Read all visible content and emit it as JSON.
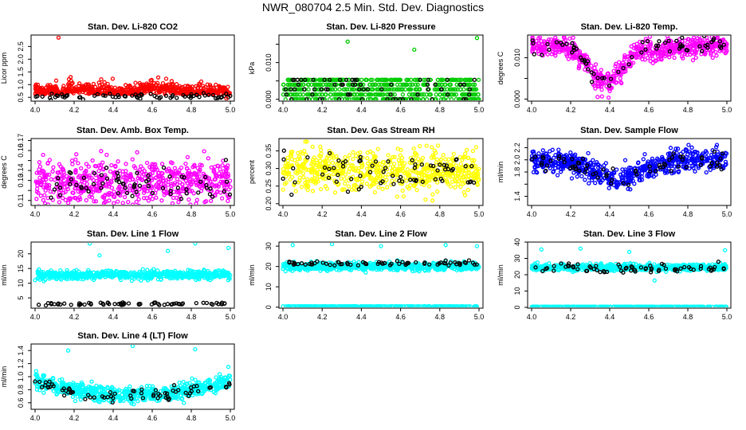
{
  "page_title": "NWR_080704  2.5 Min. Std. Dev. Diagnostics",
  "chart_data": [
    {
      "type": "scatter",
      "title": "Stan. Dev. Li-820 CO2",
      "xlabel": "",
      "ylabel": "Licor ppm",
      "xlim": [
        4.0,
        5.0
      ],
      "ylim": [
        0.35,
        2.95
      ],
      "xticks": [
        4.0,
        4.2,
        4.4,
        4.6,
        4.8,
        5.0
      ],
      "yticks": [
        0.5,
        1.0,
        1.5,
        2.0,
        2.5
      ],
      "ytick_labels": [
        "0.5",
        "1.0",
        "1.5",
        "2.0",
        "2.5"
      ],
      "series": [
        {
          "name": "dense",
          "color": "#ff0000",
          "profile": "co2"
        },
        {
          "name": "sparse",
          "color": "#000000",
          "profile": "co2_black"
        }
      ],
      "outliers": [
        [
          4.12,
          2.85
        ],
        [
          4.98,
          0.45
        ]
      ]
    },
    {
      "type": "scatter",
      "title": "Stan. Dev. Li-820 Pressure",
      "xlabel": "",
      "ylabel": "kPa",
      "xlim": [
        4.0,
        5.0
      ],
      "ylim": [
        -0.0005,
        0.0175
      ],
      "xticks": [
        4.0,
        4.2,
        4.4,
        4.6,
        4.8,
        5.0
      ],
      "yticks": [
        0.0,
        0.005,
        0.01,
        0.015
      ],
      "ytick_labels": [
        "0.000",
        "",
        "0.010",
        ""
      ],
      "series": [
        {
          "name": "dense",
          "color": "#00cc00",
          "profile": "pressure"
        },
        {
          "name": "sparse",
          "color": "#000000",
          "profile": "pressure_black"
        }
      ],
      "outliers": [
        [
          4.33,
          0.0157
        ],
        [
          4.67,
          0.0135
        ],
        [
          4.99,
          0.0167
        ]
      ]
    },
    {
      "type": "scatter",
      "title": "Stan. Dev. Li-820 Temp.",
      "xlabel": "",
      "ylabel": "degrees C",
      "xlim": [
        4.0,
        5.0
      ],
      "ylim": [
        -0.0005,
        0.0155
      ],
      "xticks": [
        4.0,
        4.2,
        4.4,
        4.6,
        4.8,
        5.0
      ],
      "yticks": [
        0.0,
        0.005,
        0.01
      ],
      "ytick_labels": [
        "0.000",
        "",
        "0.010"
      ],
      "series": [
        {
          "name": "dense",
          "color": "#ff00ff",
          "profile": "temp"
        },
        {
          "name": "sparse",
          "color": "#000000",
          "profile": "temp_black"
        }
      ],
      "outliers": []
    },
    {
      "type": "scatter",
      "title": "Stan. Dev. Amb. Box Temp.",
      "xlabel": "",
      "ylabel": "degrees C",
      "xlim": [
        4.0,
        5.0
      ],
      "ylim": [
        0.105,
        0.172
      ],
      "xticks": [
        4.0,
        4.2,
        4.4,
        4.6,
        4.8,
        5.0
      ],
      "yticks": [
        0.11,
        0.12,
        0.13,
        0.14,
        0.15,
        0.16,
        0.17
      ],
      "ytick_labels": [
        "0.11",
        "",
        "0.13",
        "0.14",
        "",
        "0.16",
        "0.17"
      ],
      "series": [
        {
          "name": "dense",
          "color": "#ff00ff",
          "profile": "box"
        },
        {
          "name": "sparse",
          "color": "#000000",
          "profile": "box_black"
        }
      ],
      "outliers": []
    },
    {
      "type": "scatter",
      "title": "Stan. Dev. Gas Stream RH",
      "xlabel": "",
      "ylabel": "percent",
      "xlim": [
        4.0,
        5.0
      ],
      "ylim": [
        0.195,
        0.385
      ],
      "xticks": [
        4.0,
        4.2,
        4.4,
        4.6,
        4.8,
        5.0
      ],
      "yticks": [
        0.2,
        0.25,
        0.3,
        0.35
      ],
      "ytick_labels": [
        "0.20",
        "0.25",
        "0.30",
        "0.35"
      ],
      "series": [
        {
          "name": "dense",
          "color": "#ffff00",
          "profile": "rh"
        },
        {
          "name": "sparse",
          "color": "#000000",
          "profile": "rh_black"
        }
      ],
      "outliers": []
    },
    {
      "type": "scatter",
      "title": "Stan. Dev. Sample Flow",
      "xlabel": "",
      "ylabel": "ml/min",
      "xlim": [
        4.0,
        5.0
      ],
      "ylim": [
        1.25,
        2.35
      ],
      "xticks": [
        4.0,
        4.2,
        4.4,
        4.6,
        4.8,
        5.0
      ],
      "yticks": [
        1.4,
        1.6,
        1.8,
        2.0,
        2.2
      ],
      "ytick_labels": [
        "1.4",
        "",
        "1.8",
        "2.0",
        "2.2"
      ],
      "series": [
        {
          "name": "dense",
          "color": "#0000ff",
          "profile": "sample"
        },
        {
          "name": "sparse",
          "color": "#000000",
          "profile": "sample_black"
        }
      ],
      "outliers": []
    },
    {
      "type": "scatter",
      "title": "Stan. Dev. Line 1 Flow",
      "xlabel": "",
      "ylabel": "ml/min",
      "xlim": [
        4.0,
        5.0
      ],
      "ylim": [
        1.5,
        24.0
      ],
      "xticks": [
        4.0,
        4.2,
        4.4,
        4.6,
        4.8,
        5.0
      ],
      "yticks": [
        5,
        10,
        15,
        20
      ],
      "ytick_labels": [
        "5",
        "10",
        "15",
        "20"
      ],
      "series": [
        {
          "name": "dense",
          "color": "#00ffff",
          "profile": "line1"
        },
        {
          "name": "sparse",
          "color": "#000000",
          "profile": "line1_black"
        }
      ],
      "outliers": [
        [
          4.28,
          23.5
        ],
        [
          4.82,
          23.5
        ],
        [
          4.99,
          22.0
        ],
        [
          4.68,
          21.0
        ],
        [
          4.33,
          19.5
        ]
      ]
    },
    {
      "type": "scatter",
      "title": "Stan. Dev. Line 2 Flow",
      "xlabel": "",
      "ylabel": "ml/min",
      "xlim": [
        4.0,
        5.0
      ],
      "ylim": [
        -0.5,
        32.0
      ],
      "xticks": [
        4.0,
        4.2,
        4.4,
        4.6,
        4.8,
        5.0
      ],
      "yticks": [
        0,
        10,
        20,
        30
      ],
      "ytick_labels": [
        "0",
        "10",
        "20",
        "30"
      ],
      "series": [
        {
          "name": "dense",
          "color": "#00ffff",
          "profile": "line2"
        },
        {
          "name": "low",
          "color": "#00ffff",
          "profile": "line2_low"
        },
        {
          "name": "sparse",
          "color": "#000000",
          "profile": "line2_black"
        }
      ],
      "outliers": [
        [
          4.05,
          30.5
        ],
        [
          4.25,
          31.0
        ],
        [
          4.5,
          30.0
        ],
        [
          4.99,
          30.0
        ],
        [
          4.83,
          30.5
        ]
      ]
    },
    {
      "type": "scatter",
      "title": "Stan. Dev. Line 3 Flow",
      "xlabel": "",
      "ylabel": "ml/min",
      "xlim": [
        4.0,
        5.0
      ],
      "ylim": [
        -0.5,
        40.0
      ],
      "xticks": [
        4.0,
        4.2,
        4.4,
        4.6,
        4.8,
        5.0
      ],
      "yticks": [
        0,
        10,
        20,
        30,
        40
      ],
      "ytick_labels": [
        "0",
        "10",
        "20",
        "30",
        "40"
      ],
      "series": [
        {
          "name": "dense",
          "color": "#00ffff",
          "profile": "line3"
        },
        {
          "name": "low",
          "color": "#00ffff",
          "profile": "line3_low"
        },
        {
          "name": "sparse",
          "color": "#000000",
          "profile": "line3_black"
        }
      ],
      "outliers": [
        [
          4.05,
          35.5
        ],
        [
          4.25,
          36.0
        ],
        [
          4.5,
          34.0
        ],
        [
          4.99,
          35.0
        ],
        [
          4.63,
          16.5
        ]
      ]
    },
    {
      "type": "scatter",
      "title": "Stan. Dev. Line 4 (LT) Flow",
      "xlabel": "",
      "ylabel": "ml/min",
      "xlim": [
        4.0,
        5.0
      ],
      "ylim": [
        0.5,
        1.5
      ],
      "xticks": [
        4.0,
        4.2,
        4.4,
        4.6,
        4.8,
        5.0
      ],
      "yticks": [
        0.6,
        0.8,
        1.0,
        1.2,
        1.4
      ],
      "ytick_labels": [
        "0.6",
        "0.8",
        "1.0",
        "1.2",
        "1.4"
      ],
      "series": [
        {
          "name": "dense",
          "color": "#00ffff",
          "profile": "line4"
        },
        {
          "name": "sparse",
          "color": "#000000",
          "profile": "line4_black"
        }
      ],
      "outliers": [
        [
          4.5,
          1.47
        ],
        [
          4.82,
          1.42
        ],
        [
          4.17,
          1.4
        ],
        [
          4.99,
          1.15
        ]
      ]
    }
  ]
}
